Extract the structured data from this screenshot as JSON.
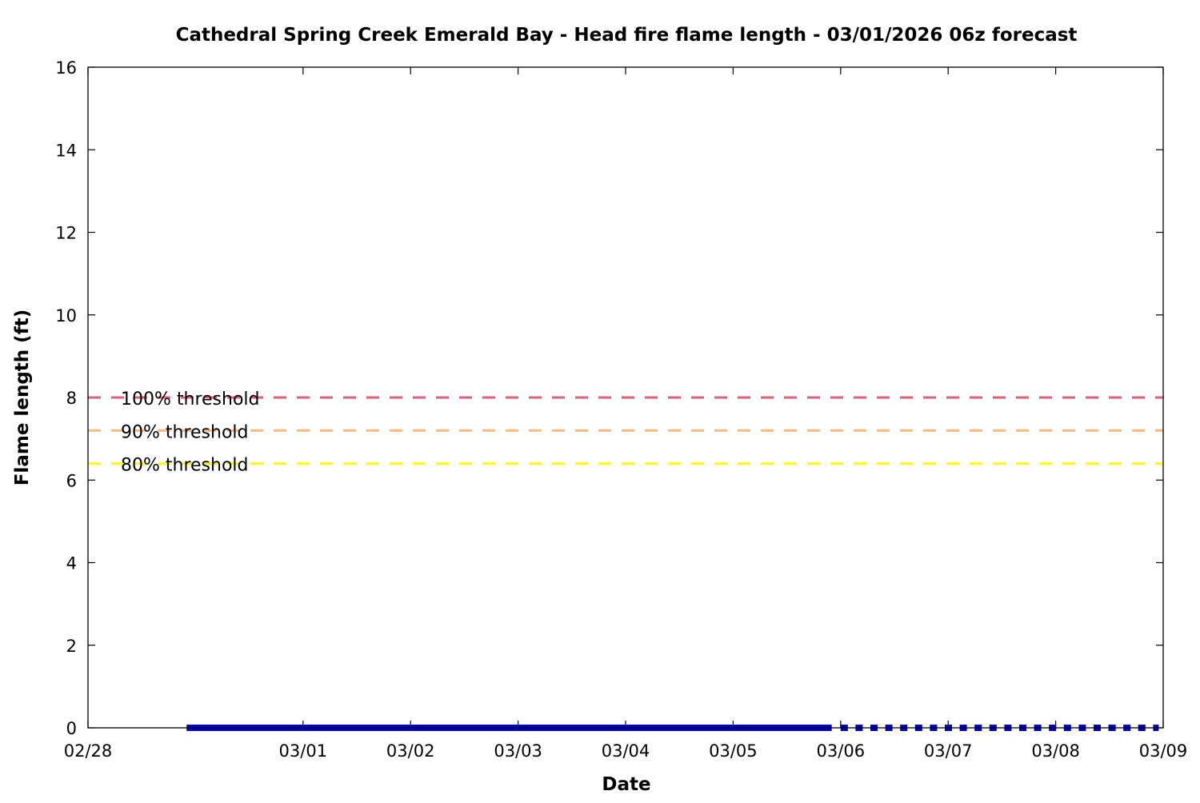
{
  "chart_data": {
    "type": "line",
    "title": "Cathedral Spring Creek Emerald Bay - Head fire flame length - 03/01/2026 06z forecast",
    "xlabel": "Date",
    "ylabel": "Flame length (ft)",
    "xlim": [
      "02/28 00:00",
      "03/09 00:00"
    ],
    "ylim": [
      0,
      16
    ],
    "x_ticks": [
      "02/28",
      "03/01",
      "03/02",
      "03/03",
      "03/04",
      "03/05",
      "03/06",
      "03/07",
      "03/08",
      "03/09"
    ],
    "y_ticks": [
      0,
      2,
      4,
      6,
      8,
      10,
      12,
      14,
      16
    ],
    "grid": false,
    "legend_placement": "left",
    "thresholds": [
      {
        "name": "100% threshold",
        "value": 8.0,
        "color": "#e0607e"
      },
      {
        "name": "90% threshold",
        "value": 7.2,
        "color": "#f8b880"
      },
      {
        "name": "80% threshold",
        "value": 6.4,
        "color": "#ffff00"
      }
    ],
    "series": [
      {
        "style": "solid",
        "color": "#0000c0",
        "x": [
          "02/28 22:00",
          "03/05 22:00"
        ],
        "y": [
          0,
          0
        ]
      },
      {
        "style": "dotted",
        "color": "#0000c0",
        "x": [
          "03/06 00:00",
          "03/08 23:00"
        ],
        "y": [
          0,
          0
        ]
      }
    ]
  }
}
